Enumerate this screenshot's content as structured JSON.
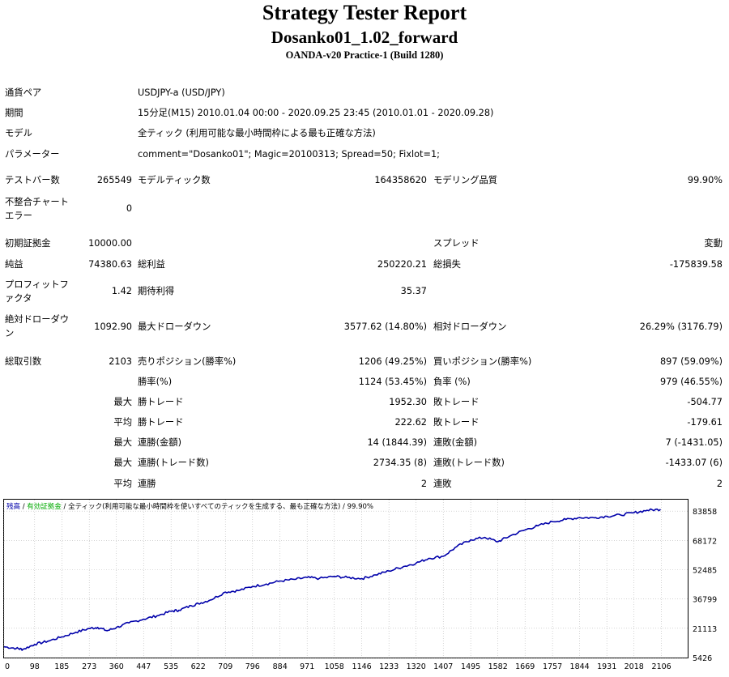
{
  "header": {
    "title": "Strategy Tester Report",
    "subtitle": "Dosanko01_1.02_forward",
    "server": "OANDA-v20 Practice-1 (Build 1280)"
  },
  "info": {
    "symbol_label": "通貨ペア",
    "symbol_value": "USDJPY-a (USD/JPY)",
    "period_label": "期間",
    "period_value": "15分足(M15) 2010.01.04 00:00 - 2020.09.25 23:45 (2010.01.01 - 2020.09.28)",
    "model_label": "モデル",
    "model_value": "全ティック (利用可能な最小時間枠による最も正確な方法)",
    "params_label": "パラメーター",
    "params_value": "comment=\"Dosanko01\"; Magic=20100313; Spread=50; Fixlot=1;"
  },
  "stats": {
    "bars_label": "テストバー数",
    "bars_value": "265549",
    "ticks_label": "モデルティック数",
    "ticks_value": "164358620",
    "quality_label": "モデリング品質",
    "quality_value": "99.90%",
    "mismatch_label": "不整合チャートエラー",
    "mismatch_value": "0",
    "deposit_label": "初期証拠金",
    "deposit_value": "10000.00",
    "spread_label": "スプレッド",
    "spread_value": "変動",
    "net_label": "純益",
    "net_value": "74380.63",
    "gross_profit_label": "総利益",
    "gross_profit_value": "250220.21",
    "gross_loss_label": "総損失",
    "gross_loss_value": "-175839.58",
    "pf_label": "プロフィットファクタ",
    "pf_value": "1.42",
    "expected_label": "期待利得",
    "expected_value": "35.37",
    "abs_dd_label": "絶対ドローダウン",
    "abs_dd_value": "1092.90",
    "max_dd_label": "最大ドローダウン",
    "max_dd_value": "3577.62 (14.80%)",
    "rel_dd_label": "相対ドローダウン",
    "rel_dd_value": "26.29% (3176.79)",
    "trades_label": "総取引数",
    "trades_value": "2103",
    "short_label": "売りポジション(勝率%)",
    "short_value": "1206 (49.25%)",
    "long_label": "買いポジション(勝率%)",
    "long_value": "897 (59.09%)",
    "win_label": "勝率(%)",
    "win_value": "1124 (53.45%)",
    "loss_label": "負率 (%)",
    "loss_value": "979 (46.55%)",
    "max_word": "最大",
    "avg_word": "平均",
    "largest_win_label": "勝トレード",
    "largest_win_value": "1952.30",
    "largest_loss_label": "敗トレード",
    "largest_loss_value": "-504.77",
    "avg_win_label": "勝トレード",
    "avg_win_value": "222.62",
    "avg_loss_label": "敗トレード",
    "avg_loss_value": "-179.61",
    "cons_wins_money_label": "連勝(金額)",
    "cons_wins_money_value": "14 (1844.39)",
    "cons_losses_money_label": "連敗(金額)",
    "cons_losses_money_value": "7 (-1431.05)",
    "cons_wins_count_label": "連勝(トレード数)",
    "cons_wins_count_value": "2734.35 (8)",
    "cons_losses_count_label": "連敗(トレード数)",
    "cons_losses_count_value": "-1433.07 (6)",
    "avg_cons_wins_label": "連勝",
    "avg_cons_wins_value": "2",
    "avg_cons_losses_label": "連敗",
    "avg_cons_losses_value": "2"
  },
  "chart_data": {
    "type": "line",
    "legend": {
      "balance": "残高",
      "equity": "有効証拠金",
      "model": "全ティック(利用可能な最小時間枠を使いすべてのティックを生成する、最も正確な方法)",
      "quality": "99.90%"
    },
    "colors": {
      "balance": "#0000aa",
      "equity": "#00aa00",
      "grid": "#b8b8b8"
    },
    "x_ticks": [
      0,
      98,
      185,
      273,
      360,
      447,
      535,
      622,
      709,
      796,
      884,
      971,
      1058,
      1146,
      1233,
      1320,
      1407,
      1495,
      1582,
      1669,
      1757,
      1844,
      1931,
      2018,
      2106
    ],
    "y_ticks": [
      5426,
      21113,
      36799,
      52485,
      68172,
      83858
    ],
    "xlim": [
      0,
      2190
    ],
    "ylim": [
      5426,
      90000
    ],
    "series": [
      {
        "name": "残高",
        "x": [
          0,
          40,
          60,
          98,
          140,
          185,
          230,
          273,
          300,
          330,
          360,
          400,
          447,
          490,
          535,
          560,
          600,
          622,
          660,
          709,
          750,
          796,
          840,
          884,
          930,
          971,
          1010,
          1058,
          1100,
          1146,
          1190,
          1233,
          1280,
          1320,
          1360,
          1407,
          1450,
          1495,
          1540,
          1582,
          1620,
          1669,
          1710,
          1757,
          1800,
          1844,
          1890,
          1931,
          1975,
          2018,
          2060,
          2103
        ],
        "y": [
          11200,
          10400,
          9800,
          12500,
          14200,
          16500,
          19000,
          21000,
          21600,
          19800,
          21500,
          24000,
          26000,
          27800,
          30200,
          30800,
          33200,
          34300,
          36200,
          40500,
          41300,
          43500,
          44800,
          46400,
          47300,
          48300,
          47800,
          48900,
          48300,
          47700,
          49700,
          51800,
          54200,
          56000,
          58500,
          59700,
          64800,
          68500,
          69800,
          67500,
          70500,
          73800,
          76000,
          78200,
          79400,
          80400,
          80300,
          81100,
          81800,
          83000,
          84300,
          84800
        ]
      }
    ]
  }
}
